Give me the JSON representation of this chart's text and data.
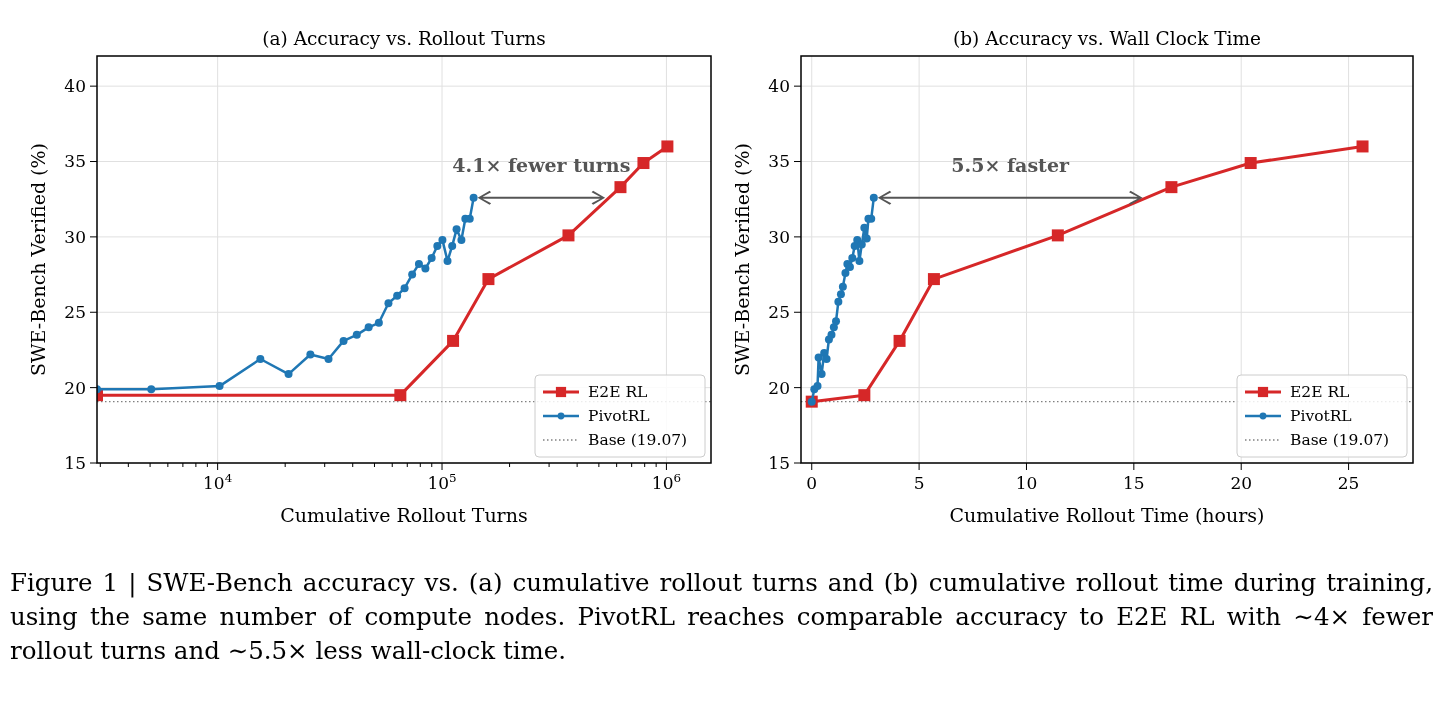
{
  "chart_data": [
    {
      "type": "line",
      "title": "(a) Accuracy vs. Rollout Turns",
      "xlabel": "Cumulative Rollout Turns",
      "ylabel": "SWE-Bench Verified (%)",
      "log": "x",
      "xlim": [
        2900,
        1580000
      ],
      "xticks": [
        {
          "value": 3000,
          "label": null
        },
        {
          "value": 4000,
          "label": null
        },
        {
          "value": 5000,
          "label": null
        },
        {
          "value": 6000,
          "label": null
        },
        {
          "value": 7000,
          "label": null
        },
        {
          "value": 8000,
          "label": null
        },
        {
          "value": 9000,
          "label": null
        },
        {
          "value": 10000,
          "label": "10$^{4}$"
        },
        {
          "value": 20000,
          "label": null
        },
        {
          "value": 30000,
          "label": null
        },
        {
          "value": 40000,
          "label": null
        },
        {
          "value": 50000,
          "label": null
        },
        {
          "value": 60000,
          "label": null
        },
        {
          "value": 70000,
          "label": null
        },
        {
          "value": 80000,
          "label": null
        },
        {
          "value": 90000,
          "label": null
        },
        {
          "value": 100000,
          "label": "10$^{5}$"
        },
        {
          "value": 200000,
          "label": null
        },
        {
          "value": 300000,
          "label": null
        },
        {
          "value": 400000,
          "label": null
        },
        {
          "value": 500000,
          "label": null
        },
        {
          "value": 600000,
          "label": null
        },
        {
          "value": 700000,
          "label": null
        },
        {
          "value": 800000,
          "label": null
        },
        {
          "value": 900000,
          "label": null
        },
        {
          "value": 1000000,
          "label": "10$^{6}$"
        }
      ],
      "ylim": [
        15,
        42
      ],
      "yticks": [
        15,
        20,
        25,
        30,
        35,
        40
      ],
      "grid": true,
      "legend": "bottom right",
      "line_style": "solid",
      "series": [
        {
          "name": "E2E RL",
          "color": "#d62728",
          "marker": "square",
          "x": [
            2900,
            65200,
            112000,
            161000,
            366000,
            624000,
            790000,
            1010000
          ],
          "values": [
            19.5,
            19.5,
            23.1,
            27.2,
            30.1,
            33.3,
            34.9,
            36.0
          ]
        },
        {
          "name": "PivotRL",
          "color": "#1f77b4",
          "marker": "circle",
          "x": [
            2900,
            5060,
            10200,
            15500,
            20700,
            25900,
            31200,
            36400,
            41700,
            47100,
            52300,
            57700,
            63100,
            68100,
            73600,
            78900,
            84300,
            89900,
            95300,
            100400,
            105800,
            111000,
            116100,
            122000,
            127000,
            132900,
            138300
          ],
          "values": [
            19.9,
            19.9,
            20.1,
            21.9,
            20.9,
            22.2,
            21.9,
            23.1,
            23.5,
            24.0,
            24.3,
            25.6,
            26.1,
            26.6,
            27.5,
            28.2,
            27.9,
            28.6,
            29.4,
            29.8,
            28.4,
            29.4,
            30.5,
            29.8,
            31.2,
            31.2,
            32.6
          ]
        }
      ],
      "ref_lines": [
        {
          "axis": "y",
          "value": 19.07,
          "label": "Base (19.07)",
          "color": "#808080",
          "line_style": "dotted"
        }
      ],
      "annotations": [
        "4.1× fewer turns",
        "Figure 1 | SWE-Bench accuracy vs. (a) cumulative rollout turns and (b) cumulative rollout time during training, using the same number of compute nodes. PivotRL reaches comparable accuracy to E2E RL with ∼4× fewer rollout turns and ∼5.5× less wall-clock time."
      ]
    },
    {
      "type": "line",
      "title": "(b) Accuracy vs. Wall Clock Time",
      "xlabel": "Cumulative Rollout Time (hours)",
      "ylabel": "SWE-Bench Verified (%)",
      "xlim": [
        -0.5,
        28
      ],
      "xticks": [
        0,
        5,
        10,
        15,
        20,
        25
      ],
      "ylim": [
        15,
        42
      ],
      "yticks": [
        15,
        20,
        25,
        30,
        35,
        40
      ],
      "grid": true,
      "legend": "bottom right",
      "line_style": "solid",
      "series": [
        {
          "name": "E2E RL",
          "color": "#d62728",
          "marker": "square",
          "x": [
            0,
            2.45,
            4.09,
            5.69,
            11.46,
            16.75,
            20.44,
            25.65
          ],
          "values": [
            19.07,
            19.5,
            23.1,
            27.2,
            30.1,
            33.3,
            34.9,
            36.0
          ]
        },
        {
          "name": "PivotRL",
          "color": "#1f77b4",
          "marker": "circle",
          "x": [
            0,
            0.12,
            0.27,
            0.32,
            0.46,
            0.58,
            0.69,
            0.8,
            0.92,
            1.03,
            1.13,
            1.24,
            1.36,
            1.45,
            1.57,
            1.66,
            1.78,
            1.89,
            2.0,
            2.12,
            2.22,
            2.33,
            2.45,
            2.56,
            2.64,
            2.77,
            2.89
          ],
          "values": [
            19.07,
            19.9,
            20.1,
            22.0,
            20.9,
            22.3,
            21.9,
            23.2,
            23.5,
            24.0,
            24.4,
            25.7,
            26.2,
            26.7,
            27.6,
            28.2,
            28.0,
            28.6,
            29.4,
            29.8,
            28.4,
            29.5,
            30.6,
            29.9,
            31.2,
            31.2,
            32.6
          ]
        }
      ],
      "ref_lines": [
        {
          "axis": "y",
          "value": 19.07,
          "label": "Base (19.07)",
          "color": "#808080",
          "line_style": "dotted"
        }
      ],
      "annotations": [
        "5.5× faster"
      ]
    }
  ]
}
